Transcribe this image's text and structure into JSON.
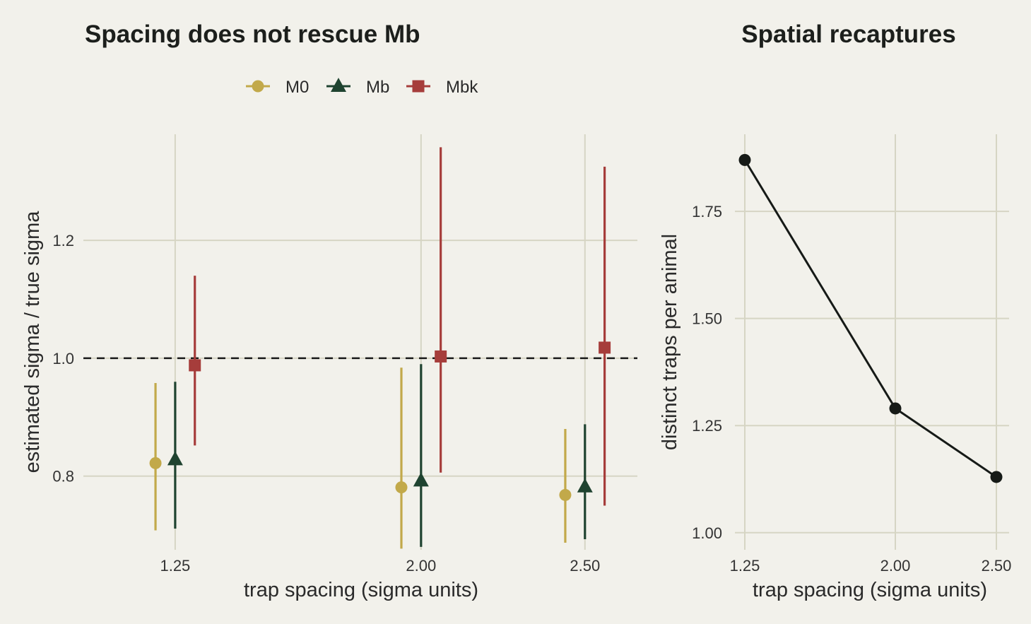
{
  "chart_data": [
    {
      "type": "scatter",
      "title": "Spacing does not rescue Mb",
      "xlabel": "trap spacing (sigma units)",
      "ylabel": "estimated sigma / true sigma",
      "x_ticks": [
        "1.25",
        "2.00",
        "2.50"
      ],
      "y_ticks": [
        "0.8",
        "1.0",
        "1.2"
      ],
      "xlim": [
        0.97,
        2.66
      ],
      "ylim": [
        0.675,
        1.38
      ],
      "reference_line": {
        "y": 1.0,
        "style": "dashed"
      },
      "legend": {
        "position": "top"
      },
      "series": [
        {
          "name": "M0",
          "marker": "circle",
          "color": "#c2a94a",
          "x_offset": -0.06,
          "points": [
            {
              "x": 1.25,
              "y": 0.822,
              "low": 0.708,
              "high": 0.958
            },
            {
              "x": 2.0,
              "y": 0.781,
              "low": 0.677,
              "high": 0.984
            },
            {
              "x": 2.5,
              "y": 0.768,
              "low": 0.687,
              "high": 0.88
            }
          ]
        },
        {
          "name": "Mb",
          "marker": "triangle",
          "color": "#1f4330",
          "x_offset": 0.0,
          "points": [
            {
              "x": 1.25,
              "y": 0.828,
              "low": 0.711,
              "high": 0.96
            },
            {
              "x": 2.0,
              "y": 0.792,
              "low": 0.68,
              "high": 0.99
            },
            {
              "x": 2.5,
              "y": 0.782,
              "low": 0.693,
              "high": 0.888
            }
          ]
        },
        {
          "name": "Mbk",
          "marker": "square",
          "color": "#a63d3b",
          "x_offset": 0.06,
          "points": [
            {
              "x": 1.25,
              "y": 0.988,
              "low": 0.852,
              "high": 1.14
            },
            {
              "x": 2.0,
              "y": 1.003,
              "low": 0.806,
              "high": 1.358
            },
            {
              "x": 2.5,
              "y": 1.018,
              "low": 0.75,
              "high": 1.325
            }
          ]
        }
      ]
    },
    {
      "type": "line",
      "title": "Spatial recaptures",
      "xlabel": "trap spacing (sigma units)",
      "ylabel": "distinct traps per animal",
      "x_ticks": [
        "1.25",
        "2.00",
        "2.50"
      ],
      "y_ticks": [
        "1.00",
        "1.25",
        "1.50",
        "1.75"
      ],
      "xlim": [
        1.25,
        2.56
      ],
      "ylim": [
        0.96,
        1.93
      ],
      "color": "#161a17",
      "points": [
        {
          "x": 1.25,
          "y": 1.87
        },
        {
          "x": 2.0,
          "y": 1.29
        },
        {
          "x": 2.5,
          "y": 1.13
        }
      ]
    }
  ]
}
